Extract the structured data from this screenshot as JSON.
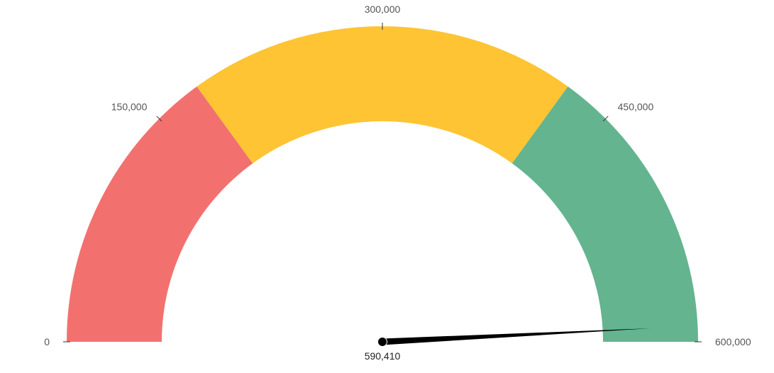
{
  "chart_data": {
    "type": "gauge",
    "min": 0,
    "max": 600000,
    "value": 590410,
    "value_label": "590,410",
    "bands": [
      {
        "from": 0,
        "to": 180000,
        "color": "#f2716f"
      },
      {
        "from": 180000,
        "to": 420000,
        "color": "#fec433"
      },
      {
        "from": 420000,
        "to": 600000,
        "color": "#63b48f"
      }
    ],
    "ticks": [
      {
        "value": 0,
        "label": "0"
      },
      {
        "value": 150000,
        "label": "150,000"
      },
      {
        "value": 300000,
        "label": "300,000"
      },
      {
        "value": 450000,
        "label": "450,000"
      },
      {
        "value": 600000,
        "label": "600,000"
      }
    ],
    "needle_color": "#000000"
  }
}
